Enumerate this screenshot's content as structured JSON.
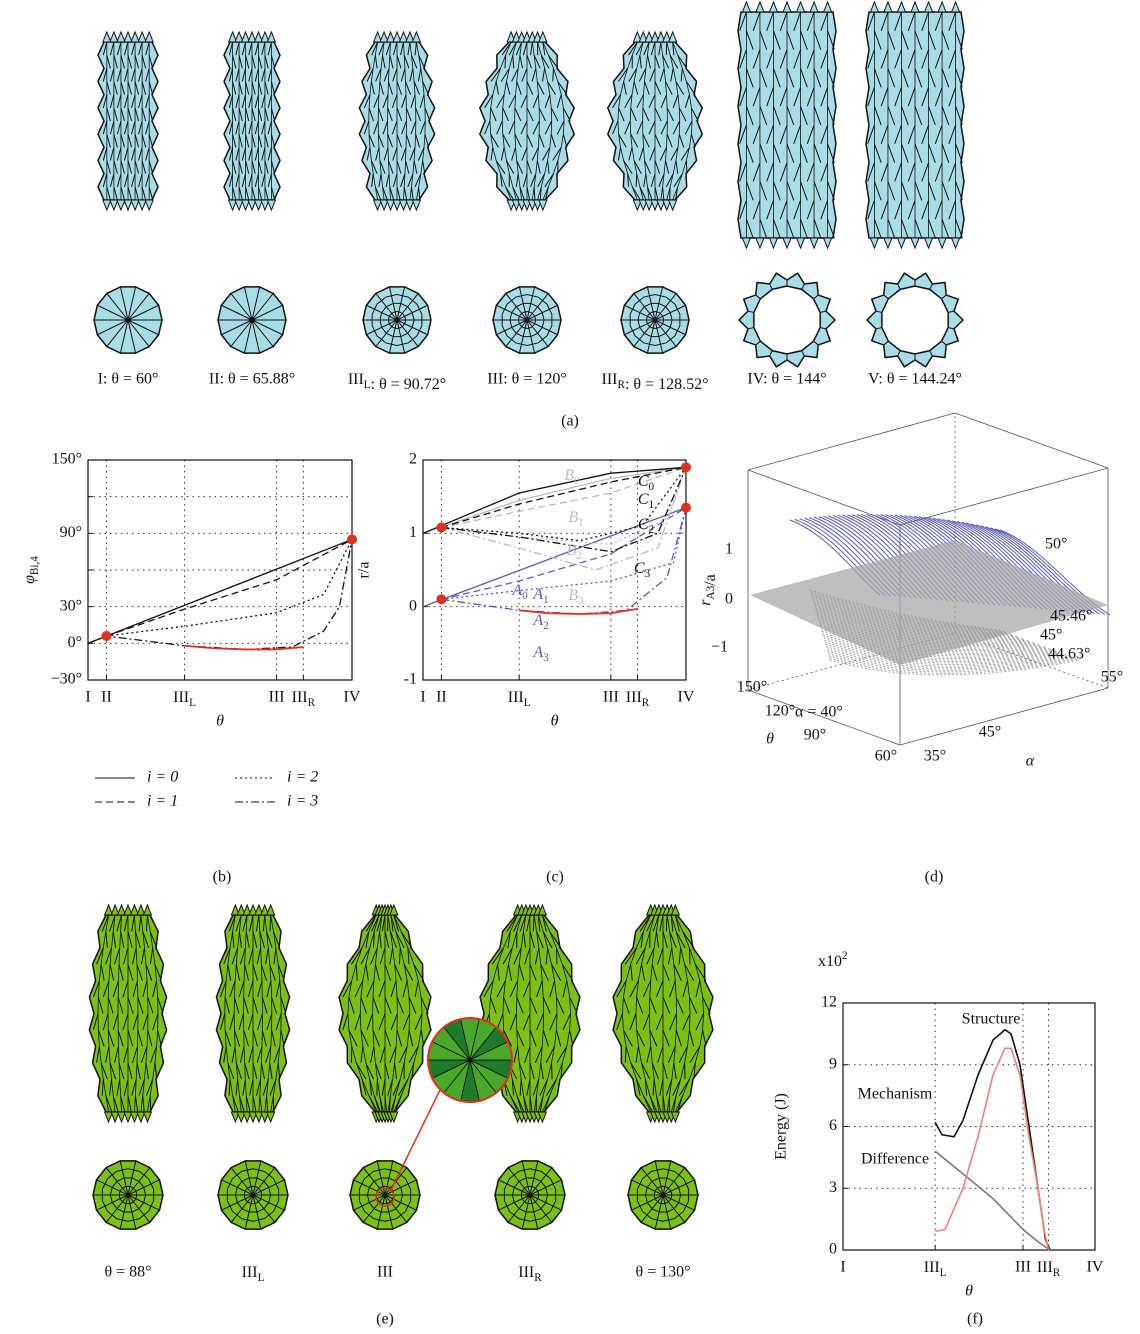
{
  "figure": {
    "a": {
      "captions": [
        "I: θ = 60°",
        "II: θ = 65.88°",
        "IIIL: θ = 90.72°",
        "III: θ = 120°",
        "IIIR: θ = 128.52°",
        "IV: θ = 144°",
        "V: θ = 144.24°"
      ],
      "label": "(a)"
    },
    "b": {
      "label": "(b)"
    },
    "c": {
      "label": "(c)"
    },
    "d": {
      "label": "(d)",
      "ylabel": "rA3/a",
      "yticks": [
        "1",
        "0",
        "−1"
      ],
      "xlabel": "θ",
      "xticks": [
        "150°",
        "120°",
        "90°",
        "60°"
      ],
      "alabel": "α",
      "aticks": [
        "35°",
        "45°",
        "55°"
      ],
      "annotations": [
        "50°",
        "45.46°",
        "45°",
        "44.63°",
        "α = 40°"
      ]
    },
    "e": {
      "captions": [
        "θ = 88°",
        "IIIL",
        "III",
        "IIIR",
        "θ = 130°"
      ],
      "label": "(e)"
    },
    "f": {
      "label": "(f)"
    }
  },
  "chart_data": [
    {
      "type": "line",
      "xlabel": "θ",
      "ylabel": "φBi,4",
      "xlim": [
        60,
        144
      ],
      "ylim": [
        -30,
        150
      ],
      "grid": true,
      "xticks": [
        {
          "value": 60,
          "label": "I"
        },
        {
          "value": 65.88,
          "label": "II"
        },
        {
          "value": 90.72,
          "label": "IIIL"
        },
        {
          "value": 120,
          "label": "III"
        },
        {
          "value": 128.52,
          "label": "IIIR"
        },
        {
          "value": 144,
          "label": "IV"
        }
      ],
      "yticks": [
        {
          "value": -30,
          "label": "−30°"
        },
        {
          "value": 0,
          "label": "0°"
        },
        {
          "value": 30,
          "label": "30°"
        },
        {
          "value": 60,
          "label": null
        },
        {
          "value": 90,
          "label": "90°"
        },
        {
          "value": 120,
          "label": null
        },
        {
          "value": 150,
          "label": "150°"
        }
      ],
      "series": [
        {
          "name": "i = 0",
          "color": "#111111",
          "x": [
            60,
            144
          ],
          "values": [
            0,
            85
          ]
        },
        {
          "name": "i = 1",
          "color": "#111111",
          "x": [
            65.88,
            90.72,
            120,
            144
          ],
          "values": [
            6,
            28,
            52,
            85
          ]
        },
        {
          "name": "i = 2",
          "color": "#111111",
          "x": [
            65.88,
            90.72,
            120,
            135,
            144
          ],
          "values": [
            6,
            14,
            25,
            40,
            85
          ]
        },
        {
          "name": "i = 3",
          "color": "#111111",
          "x": [
            60,
            65.88,
            90.72,
            110,
            125,
            135,
            140,
            144
          ],
          "values": [
            0,
            6,
            -2,
            -5,
            -3,
            10,
            30,
            85
          ]
        }
      ],
      "highlight": {
        "color": "#e03020",
        "x": [
          90.72,
          100,
          110,
          120,
          128.52
        ],
        "values": [
          -2,
          -4,
          -5,
          -5,
          -3
        ]
      },
      "points": {
        "color": "#e03020",
        "x": [
          65.88,
          144
        ],
        "values": [
          6,
          85
        ]
      }
    },
    {
      "type": "line",
      "xlabel": "θ",
      "ylabel": "r/a",
      "xlim": [
        60,
        144
      ],
      "ylim": [
        -1,
        2
      ],
      "grid": true,
      "xticks": [
        {
          "value": 60,
          "label": "I"
        },
        {
          "value": 65.88,
          "label": "II"
        },
        {
          "value": 90.72,
          "label": "IIIL"
        },
        {
          "value": 120,
          "label": "III"
        },
        {
          "value": 128.52,
          "label": "IIIR"
        },
        {
          "value": 144,
          "label": "IV"
        }
      ],
      "yticks": [
        -1,
        0,
        1,
        2
      ],
      "series": [
        {
          "name": "A0",
          "color": "#5a5ab4",
          "x": [
            60,
            144
          ],
          "values": [
            0,
            1.35
          ]
        },
        {
          "name": "A1",
          "color": "#5a5ab4",
          "x": [
            65.88,
            90.72,
            120,
            144
          ],
          "values": [
            0.1,
            0.35,
            0.72,
            1.35
          ]
        },
        {
          "name": "A2",
          "color": "#5a5ab4",
          "x": [
            65.88,
            90.72,
            120,
            140,
            144
          ],
          "values": [
            0.1,
            0.22,
            0.35,
            0.6,
            1.35
          ]
        },
        {
          "name": "A3",
          "color": "#5a5ab4",
          "x": [
            65.88,
            90.72,
            110,
            125,
            138,
            144
          ],
          "values": [
            0.1,
            -0.05,
            -0.1,
            -0.05,
            0.4,
            1.35
          ]
        },
        {
          "name": "B0",
          "color": "#bbbbbb",
          "x": [
            60,
            90.72,
            120,
            144
          ],
          "values": [
            1,
            1.45,
            1.75,
            1.9
          ]
        },
        {
          "name": "B1",
          "color": "#bbbbbb",
          "x": [
            65.88,
            90.72,
            120,
            144
          ],
          "values": [
            1.08,
            1.3,
            1.55,
            1.9
          ]
        },
        {
          "name": "B2",
          "color": "#bbbbbb",
          "x": [
            65.88,
            90.72,
            120,
            138,
            144
          ],
          "values": [
            1.08,
            0.95,
            0.85,
            1.2,
            1.9
          ]
        },
        {
          "name": "B3",
          "color": "#bbbbbb",
          "x": [
            65.88,
            90.72,
            115,
            135,
            144
          ],
          "values": [
            1.08,
            0.8,
            0.5,
            0.8,
            1.9
          ]
        },
        {
          "name": "C0",
          "color": "#111111",
          "x": [
            60,
            90.72,
            120,
            144
          ],
          "values": [
            1,
            1.55,
            1.82,
            1.9
          ]
        },
        {
          "name": "C1",
          "color": "#111111",
          "x": [
            65.88,
            90.72,
            120,
            144
          ],
          "values": [
            1.08,
            1.4,
            1.7,
            1.9
          ]
        },
        {
          "name": "C2",
          "color": "#111111",
          "x": [
            65.88,
            90.72,
            110,
            130,
            144
          ],
          "values": [
            1.08,
            1.0,
            0.9,
            1.1,
            1.9
          ]
        },
        {
          "name": "C3",
          "color": "#111111",
          "x": [
            65.88,
            90.72,
            120,
            135,
            144
          ],
          "values": [
            1.08,
            0.95,
            0.75,
            1.0,
            1.9
          ]
        }
      ],
      "highlight": {
        "color": "#e03020",
        "x": [
          90.72,
          100,
          110,
          120,
          128.52
        ],
        "values": [
          -0.05,
          -0.09,
          -0.1,
          -0.09,
          -0.03
        ]
      },
      "points": {
        "color": "#e03020",
        "x": [
          65.88,
          65.88,
          144,
          144
        ],
        "values": [
          1.08,
          0.1,
          1.9,
          1.35
        ]
      }
    },
    {
      "type": "line",
      "xlabel": "θ",
      "ylabel": "Energy (J)",
      "yscale_label": "x102",
      "xlim": [
        60,
        144
      ],
      "ylim": [
        0,
        12
      ],
      "grid": true,
      "xticks": [
        {
          "value": 60,
          "label": "I"
        },
        {
          "value": 90.72,
          "label": "IIIL"
        },
        {
          "value": 120,
          "label": "III"
        },
        {
          "value": 128.52,
          "label": "IIIR"
        },
        {
          "value": 144,
          "label": "IV"
        }
      ],
      "yticks": [
        0,
        3,
        6,
        9,
        12
      ],
      "series": [
        {
          "name": "Structure",
          "color": "#111111",
          "x": [
            90.72,
            93,
            97,
            100,
            105,
            110,
            114,
            116,
            119,
            122,
            125,
            127.5,
            129
          ],
          "values": [
            6.2,
            5.6,
            5.5,
            6.3,
            8.5,
            10.2,
            10.7,
            10.5,
            9,
            6,
            3,
            0.5,
            0
          ]
        },
        {
          "name": "Mechanism",
          "color": "#777777",
          "x": [
            90.72,
            100,
            110,
            120,
            125,
            129
          ],
          "values": [
            4.8,
            3.7,
            2.5,
            1.0,
            0.4,
            0
          ]
        },
        {
          "name": "Difference",
          "color": "#f08080",
          "x": [
            90.72,
            94,
            100,
            105,
            110,
            114,
            116,
            119,
            122,
            125,
            127,
            128.5
          ],
          "values": [
            0.9,
            1,
            3,
            5.5,
            8.5,
            9.8,
            9.8,
            8.5,
            5.5,
            3,
            1,
            0
          ]
        }
      ]
    }
  ]
}
